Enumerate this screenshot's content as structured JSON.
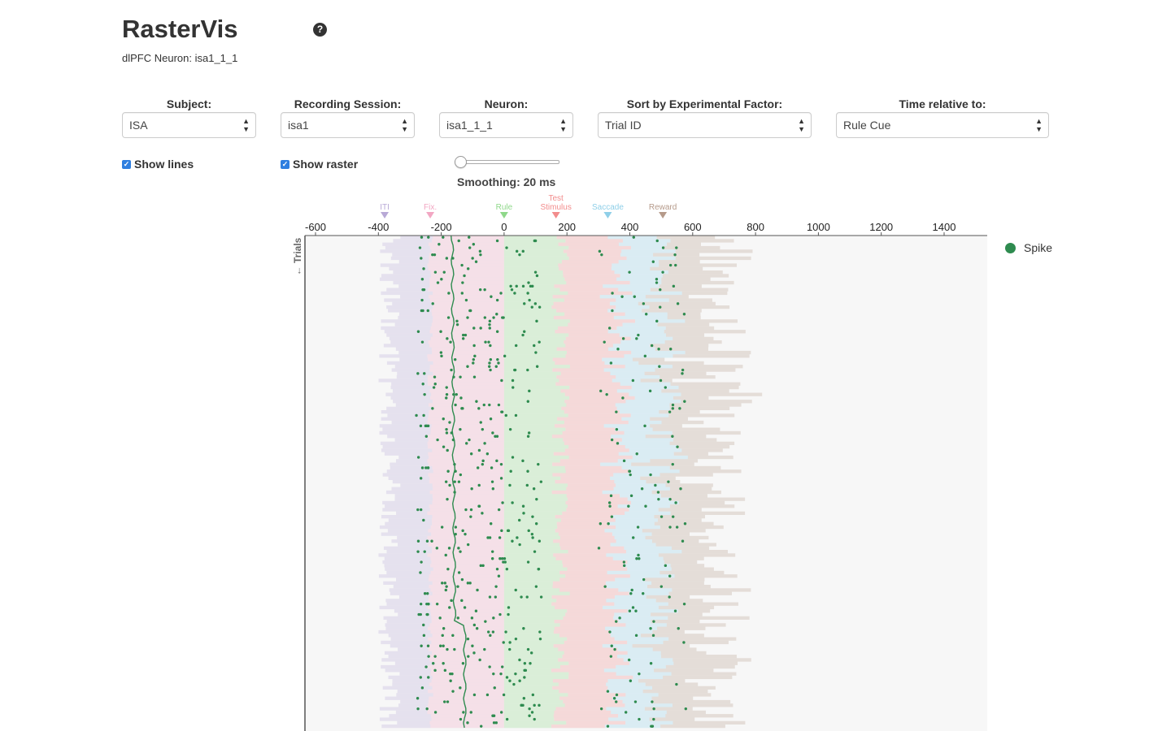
{
  "header": {
    "title": "RasterVis",
    "help_icon": "?",
    "subtitle": "dlPFC Neuron: isa1_1_1"
  },
  "controls": {
    "subject": {
      "label": "Subject:",
      "value": "ISA"
    },
    "session": {
      "label": "Recording Session:",
      "value": "isa1"
    },
    "neuron": {
      "label": "Neuron:",
      "value": "isa1_1_1"
    },
    "sort": {
      "label": "Sort by Experimental Factor:",
      "value": "Trial ID"
    },
    "time": {
      "label": "Time relative to:",
      "value": "Rule Cue"
    },
    "show_lines": {
      "label": "Show lines",
      "checked": true
    },
    "show_raster": {
      "label": "Show raster",
      "checked": true
    },
    "smoothing": {
      "label": "Smoothing: 20 ms",
      "value_ms": 20
    }
  },
  "colors": {
    "spike": "#2e8b4f",
    "iti": "#b8a9d6",
    "fix": "#f2a7c3",
    "rule": "#8fd88a",
    "test": "#f28c8c",
    "saccade": "#8fcfe8",
    "reward": "#b59a8a"
  },
  "chart_data": {
    "type": "scatter",
    "xlabel": "",
    "ylabel": "← Trials",
    "xlim": [
      -600,
      1500
    ],
    "x_ticks": [
      "-600",
      "-400",
      "-200",
      "0",
      "200",
      "400",
      "600",
      "800",
      "1000",
      "1200",
      "1400"
    ],
    "event_markers": [
      {
        "label": "ITI",
        "time": -380,
        "color": "#b8a9d6"
      },
      {
        "label": "Fix.",
        "time": -235,
        "color": "#f2a7c3"
      },
      {
        "label": "Rule",
        "time": 0,
        "color": "#8fd88a"
      },
      {
        "label": "Test Stimulus",
        "time": 165,
        "color": "#f28c8c"
      },
      {
        "label": "Saccade",
        "time": 330,
        "color": "#8fcfe8"
      },
      {
        "label": "Reward",
        "time": 505,
        "color": "#b59a8a"
      }
    ],
    "legend": [
      "Spike"
    ],
    "series": [
      {
        "name": "Spike"
      }
    ]
  }
}
